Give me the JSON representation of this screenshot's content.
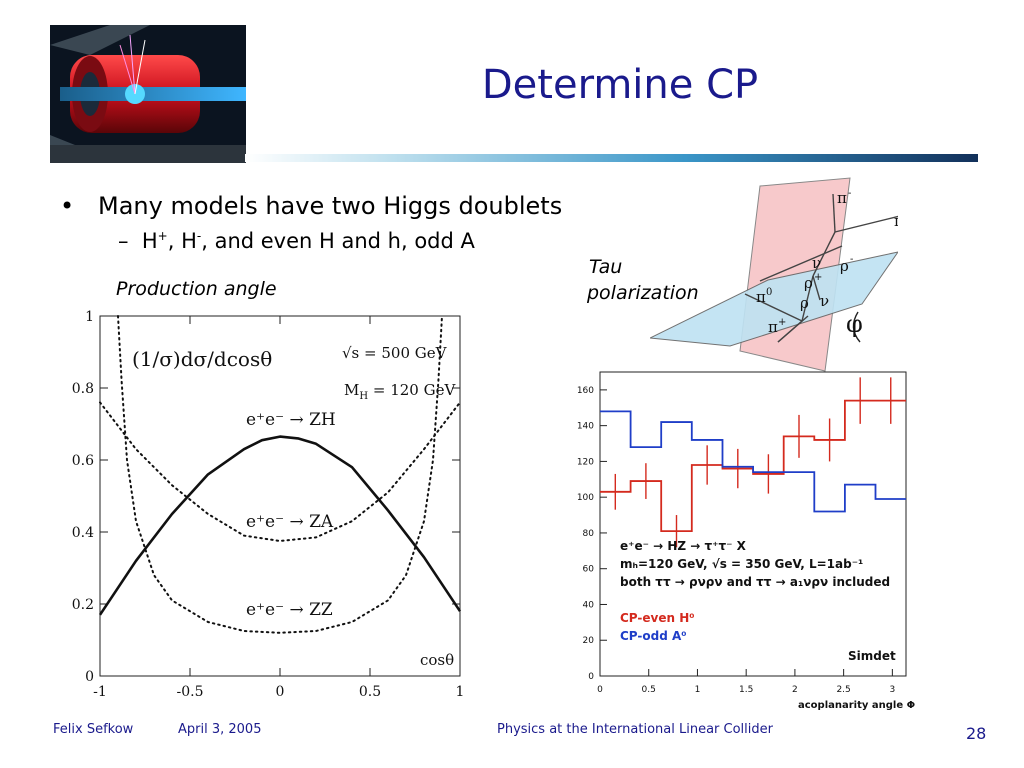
{
  "slide": {
    "title": "Determine CP",
    "bullet1": "Many models have two Higgs doublets",
    "bullet_marker": "•",
    "sub_dash": "–",
    "sub_parts": [
      "H",
      "+",
      ", H",
      "-",
      ", and even H and h, odd A"
    ],
    "production_label": "Production angle",
    "tau_label_line1": "Tau",
    "tau_label_line2": "polarization"
  },
  "footer": {
    "author": "Felix Sefkow",
    "date": "April 3, 2005",
    "talk": "Physics at the International Linear Collider",
    "page": "28"
  },
  "diagram": {
    "labels": [
      "π",
      "-",
      "π",
      "0",
      "ν",
      "ρ",
      "+",
      "ρ",
      "-",
      "π",
      "0",
      "ρ",
      "ν",
      "π",
      "+",
      "φ"
    ]
  },
  "chart_data": [
    {
      "type": "line",
      "title": "",
      "formula": "(1/σ)dσ/dcosθ",
      "annot1": "√s = 500 GeV",
      "annot2": "M",
      "annot2_sub": "H",
      "annot2_rest": " = 120 GeV",
      "xlabel": "cosθ",
      "xlim": [
        -1,
        1
      ],
      "ylim": [
        0,
        1
      ],
      "xticks": [
        "-1",
        "-0.5",
        "0",
        "0.5",
        "1"
      ],
      "yticks": [
        "0",
        "0.2",
        "0.4",
        "0.6",
        "0.8",
        "1"
      ],
      "series": [
        {
          "name": "e⁺e⁻ → ZH",
          "style": "solid",
          "x": [
            -1,
            -0.8,
            -0.6,
            -0.4,
            -0.2,
            -0.1,
            0,
            0.1,
            0.2,
            0.4,
            0.6,
            0.8,
            1
          ],
          "y": [
            0.17,
            0.32,
            0.45,
            0.56,
            0.63,
            0.655,
            0.665,
            0.66,
            0.645,
            0.58,
            0.46,
            0.33,
            0.18
          ]
        },
        {
          "name": "e⁺e⁻ → ZA",
          "style": "dotted",
          "x": [
            -1,
            -0.8,
            -0.6,
            -0.4,
            -0.2,
            0,
            0.2,
            0.4,
            0.6,
            0.8,
            1
          ],
          "y": [
            0.76,
            0.63,
            0.53,
            0.45,
            0.39,
            0.375,
            0.385,
            0.43,
            0.51,
            0.63,
            0.76
          ]
        },
        {
          "name": "e⁺e⁻ → ZZ",
          "style": "dotted",
          "x": [
            -0.9,
            -0.88,
            -0.85,
            -0.8,
            -0.7,
            -0.6,
            -0.4,
            -0.2,
            0,
            0.2,
            0.4,
            0.6,
            0.7,
            0.8,
            0.85,
            0.88,
            0.9
          ],
          "y": [
            1.0,
            0.82,
            0.6,
            0.43,
            0.28,
            0.21,
            0.15,
            0.125,
            0.12,
            0.125,
            0.15,
            0.21,
            0.28,
            0.43,
            0.6,
            0.82,
            1.0
          ]
        }
      ]
    },
    {
      "type": "line",
      "title": "",
      "xlabel": "acoplanarity angle Φ",
      "xlim": [
        0,
        3.14
      ],
      "ylim": [
        0,
        170
      ],
      "xticks": [
        "0",
        "0.5",
        "1",
        "1.5",
        "2",
        "2.5",
        "3"
      ],
      "yticks": [
        "0",
        "20",
        "40",
        "60",
        "80",
        "100",
        "120",
        "140",
        "160"
      ],
      "text_lines": [
        "e⁺e⁻ → HZ → τ⁺τ⁻ X",
        "mₕ=120 GeV, √s = 350 GeV, L=1ab⁻¹",
        "both ττ → ρνρν and ττ → a₁νρν included"
      ],
      "simdet": "Simdet",
      "series": [
        {
          "name": "CP-even H⁰",
          "color": "#d42a1e",
          "edges": [
            0,
            0.314,
            0.628,
            0.942,
            1.257,
            1.571,
            1.885,
            2.199,
            2.513,
            2.827,
            3.14
          ],
          "values": [
            103,
            109,
            81,
            118,
            116,
            113,
            134,
            132,
            154,
            154
          ],
          "errors": [
            10,
            10,
            9,
            11,
            11,
            11,
            12,
            12,
            13,
            13
          ]
        },
        {
          "name": "CP-odd A⁰",
          "color": "#1f3ec8",
          "edges": [
            0,
            0.314,
            0.628,
            0.942,
            1.257,
            1.571,
            1.885,
            2.199,
            2.513,
            2.827,
            3.14
          ],
          "values": [
            148,
            128,
            142,
            132,
            117,
            114,
            114,
            92,
            107,
            99
          ]
        }
      ]
    }
  ]
}
